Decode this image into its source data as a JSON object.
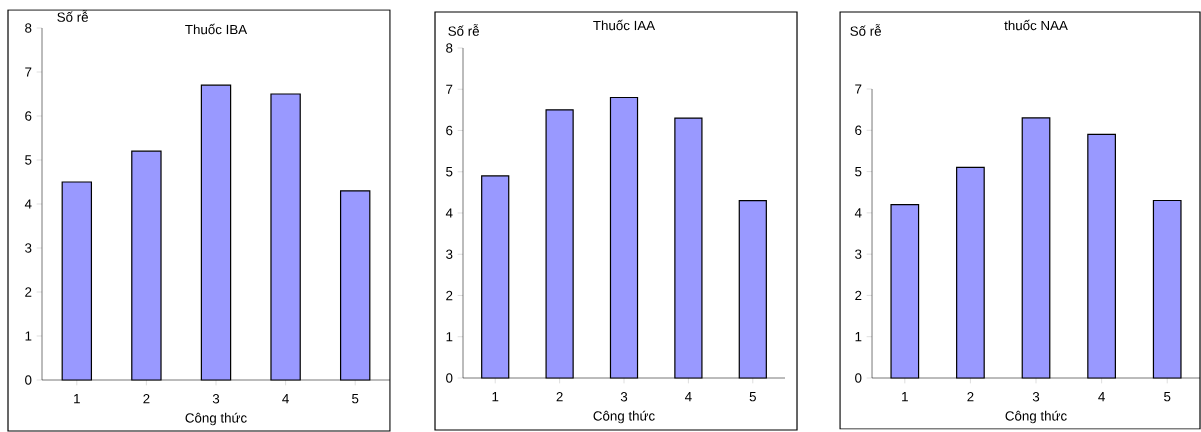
{
  "chart_data": [
    {
      "type": "bar",
      "title": "Thuốc IBA",
      "xlabel": "Công thức",
      "ylabel": "Số rễ",
      "categories": [
        "1",
        "2",
        "3",
        "4",
        "5"
      ],
      "values": [
        4.5,
        5.2,
        6.7,
        6.5,
        4.3
      ],
      "color": "#9999ff",
      "ylim": [
        0,
        8
      ],
      "yticks": [
        0,
        1,
        2,
        3,
        4,
        5,
        6,
        7,
        8
      ]
    },
    {
      "type": "bar",
      "title": "Thuốc IAA",
      "xlabel": "Công thức",
      "ylabel": "Số rễ",
      "categories": [
        "1",
        "2",
        "3",
        "4",
        "5"
      ],
      "values": [
        4.9,
        6.5,
        6.8,
        6.3,
        4.3
      ],
      "color": "#9999ff",
      "ylim": [
        0,
        8
      ],
      "yticks": [
        0,
        1,
        2,
        3,
        4,
        5,
        6,
        7,
        8
      ]
    },
    {
      "type": "bar",
      "title": "thuốc NAA",
      "xlabel": "Công thức",
      "ylabel": "Số rễ",
      "categories": [
        "1",
        "2",
        "3",
        "4",
        "5"
      ],
      "values": [
        4.2,
        5.1,
        6.3,
        5.9,
        4.3
      ],
      "color": "#9999ff",
      "ylim": [
        0,
        7
      ],
      "yticks": [
        0,
        1,
        2,
        3,
        4,
        5,
        6,
        7
      ]
    }
  ]
}
